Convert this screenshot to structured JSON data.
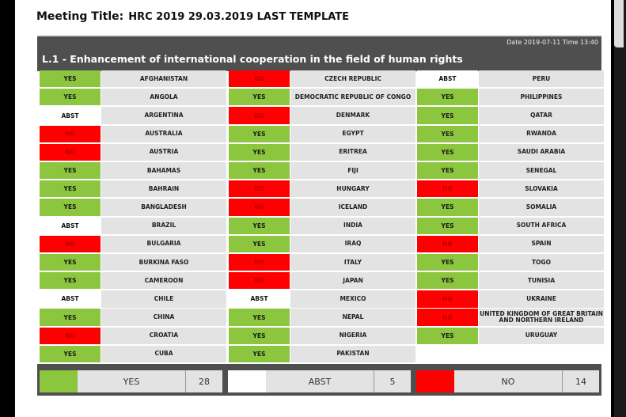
{
  "meeting_label": "Meeting Title:",
  "meeting_title": "HRC 2019 29.03.2019 LAST TEMPLATE",
  "date_time": "Date 2019-07-11  Time 13:40",
  "resolution": "L.1 - Enhancement of international cooperation in the field of human rights",
  "colors": {
    "YES": "#8cc63f",
    "NO": "#ff0000",
    "ABST": "#ffffff"
  },
  "columns": [
    [
      {
        "vote": "YES",
        "country": "AFGHANISTAN"
      },
      {
        "vote": "YES",
        "country": "ANGOLA"
      },
      {
        "vote": "ABST",
        "country": "ARGENTINA"
      },
      {
        "vote": "NO",
        "country": "AUSTRALIA"
      },
      {
        "vote": "NO",
        "country": "AUSTRIA"
      },
      {
        "vote": "YES",
        "country": "BAHAMAS"
      },
      {
        "vote": "YES",
        "country": "BAHRAIN"
      },
      {
        "vote": "YES",
        "country": "BANGLADESH"
      },
      {
        "vote": "ABST",
        "country": "BRAZIL"
      },
      {
        "vote": "NO",
        "country": "BULGARIA"
      },
      {
        "vote": "YES",
        "country": "BURKINA FASO"
      },
      {
        "vote": "YES",
        "country": "CAMEROON"
      },
      {
        "vote": "ABST",
        "country": "CHILE"
      },
      {
        "vote": "YES",
        "country": "CHINA"
      },
      {
        "vote": "NO",
        "country": "CROATIA"
      },
      {
        "vote": "YES",
        "country": "CUBA"
      }
    ],
    [
      {
        "vote": "NO",
        "country": "CZECH REPUBLIC"
      },
      {
        "vote": "YES",
        "country": "DEMOCRATIC REPUBLIC OF CONGO"
      },
      {
        "vote": "NO",
        "country": "DENMARK"
      },
      {
        "vote": "YES",
        "country": "EGYPT"
      },
      {
        "vote": "YES",
        "country": "ERITREA"
      },
      {
        "vote": "YES",
        "country": "FIJI"
      },
      {
        "vote": "NO",
        "country": "HUNGARY"
      },
      {
        "vote": "NO",
        "country": "ICELAND"
      },
      {
        "vote": "YES",
        "country": "INDIA"
      },
      {
        "vote": "YES",
        "country": "IRAQ"
      },
      {
        "vote": "NO",
        "country": "ITALY"
      },
      {
        "vote": "NO",
        "country": "JAPAN"
      },
      {
        "vote": "ABST",
        "country": "MEXICO"
      },
      {
        "vote": "YES",
        "country": "NEPAL"
      },
      {
        "vote": "YES",
        "country": "NIGERIA"
      },
      {
        "vote": "YES",
        "country": "PAKISTAN"
      }
    ],
    [
      {
        "vote": "ABST",
        "country": "PERU"
      },
      {
        "vote": "YES",
        "country": "PHILIPPINES"
      },
      {
        "vote": "YES",
        "country": "QATAR"
      },
      {
        "vote": "YES",
        "country": "RWANDA"
      },
      {
        "vote": "YES",
        "country": "SAUDI ARABIA"
      },
      {
        "vote": "YES",
        "country": "SENEGAL"
      },
      {
        "vote": "NO",
        "country": "SLOVAKIA"
      },
      {
        "vote": "YES",
        "country": "SOMALIA"
      },
      {
        "vote": "YES",
        "country": "SOUTH AFRICA"
      },
      {
        "vote": "NO",
        "country": "SPAIN"
      },
      {
        "vote": "YES",
        "country": "TOGO"
      },
      {
        "vote": "YES",
        "country": "TUNISIA"
      },
      {
        "vote": "NO",
        "country": "UKRAINE"
      },
      {
        "vote": "NO",
        "country": "UNITED KINGDOM OF GREAT BRITAIN AND NORTHERN IRELAND"
      },
      {
        "vote": "YES",
        "country": "URUGUAY"
      }
    ]
  ],
  "totals": [
    {
      "label": "YES",
      "count": "28",
      "color": "#8cc63f"
    },
    {
      "label": "ABST",
      "count": "5",
      "color": "#ffffff"
    },
    {
      "label": "NO",
      "count": "14",
      "color": "#ff0000"
    }
  ]
}
